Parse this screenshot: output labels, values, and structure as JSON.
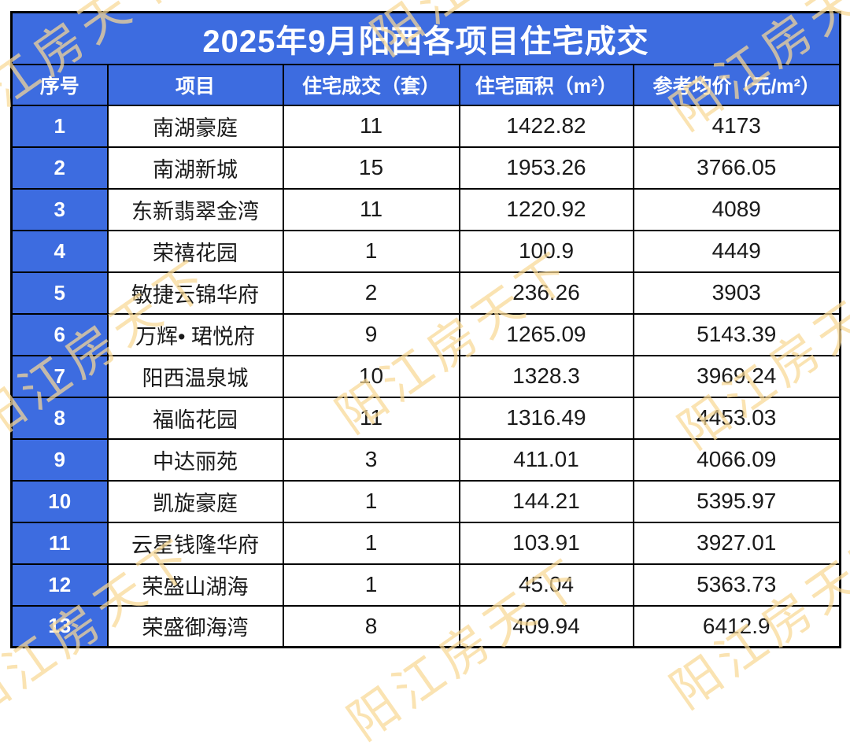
{
  "title": "2025年9月阳西各项目住宅成交",
  "watermark": {
    "text": "阳江房天下",
    "color": "#F8D894"
  },
  "colors": {
    "accent_blue": "#3D6CE0",
    "border_black": "#000000",
    "cell_text": "#1A1A1A",
    "header_text": "#FFFFFF"
  },
  "chart_data": {
    "type": "table",
    "title": "2025年9月阳西各项目住宅成交",
    "columns": [
      "序号",
      "项目",
      "住宅成交（套）",
      "住宅面积（m²）",
      "参考均价（元/m²）"
    ],
    "rows": [
      [
        "1",
        "南湖豪庭",
        "11",
        "1422.82",
        "4173"
      ],
      [
        "2",
        "南湖新城",
        "15",
        "1953.26",
        "3766.05"
      ],
      [
        "3",
        "东新翡翠金湾",
        "11",
        "1220.92",
        "4089"
      ],
      [
        "4",
        "荣禧花园",
        "1",
        "100.9",
        "4449"
      ],
      [
        "5",
        "敏捷云锦华府",
        "2",
        "236.26",
        "3903"
      ],
      [
        "6",
        "万辉• 珺悦府",
        "9",
        "1265.09",
        "5143.39"
      ],
      [
        "7",
        "阳西温泉城",
        "10",
        "1328.3",
        "3969.24"
      ],
      [
        "8",
        "福临花园",
        "11",
        "1316.49",
        "4453.03"
      ],
      [
        "9",
        "中达丽苑",
        "3",
        "411.01",
        "4066.09"
      ],
      [
        "10",
        "凯旋豪庭",
        "1",
        "144.21",
        "5395.97"
      ],
      [
        "11",
        "云星钱隆华府",
        "1",
        "103.91",
        "3927.01"
      ],
      [
        "12",
        "荣盛山湖海",
        "1",
        "45.04",
        "5363.73"
      ],
      [
        "13",
        "荣盛御海湾",
        "8",
        "409.94",
        "6412.9"
      ]
    ]
  }
}
